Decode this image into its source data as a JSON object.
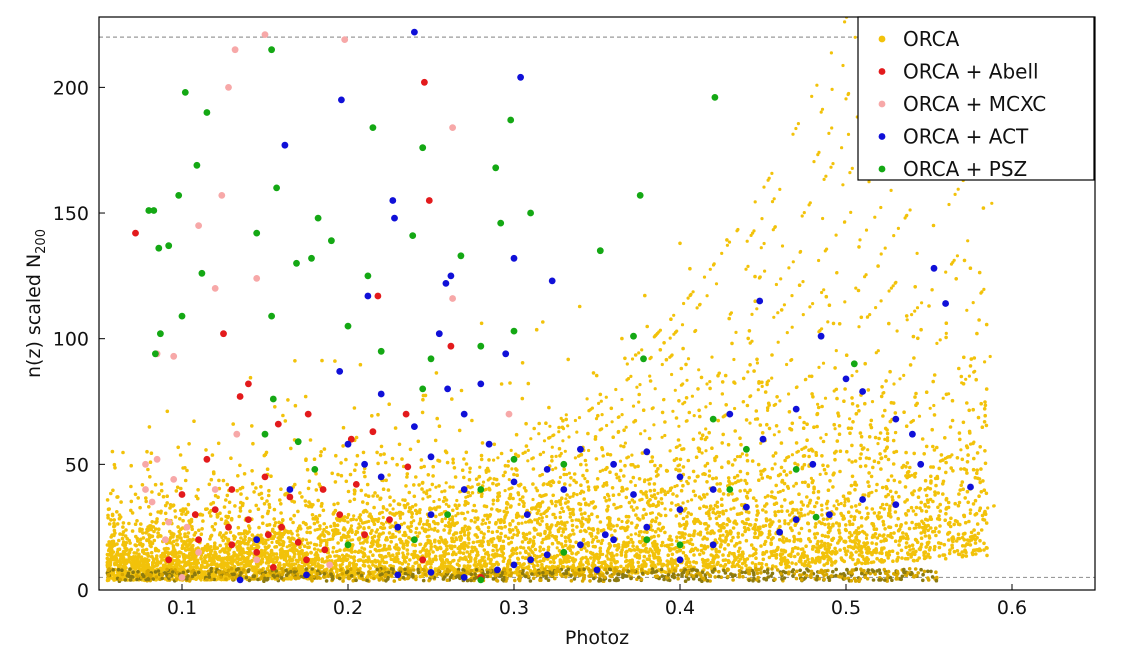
{
  "chart_data": {
    "type": "scatter",
    "xlabel": "Photoz",
    "ylabel": "n(z) scaled N",
    "ylabel_sub": "200",
    "xlim": [
      0.05,
      0.65
    ],
    "ylim": [
      0,
      228
    ],
    "xticks": [
      "0.1",
      "0.2",
      "0.3",
      "0.4",
      "0.5",
      "0.6"
    ],
    "yticks": [
      "0",
      "50",
      "100",
      "150",
      "200"
    ],
    "grid": false,
    "legend_position": "top-right",
    "reference_lines": [
      220,
      5
    ],
    "series": [
      {
        "name": "ORCA",
        "color": "#f2c20a"
      },
      {
        "name": "ORCA + Abell",
        "color": "#e31a1c"
      },
      {
        "name": "ORCA + MCXC",
        "color": "#f7a8a8"
      },
      {
        "name": "ORCA + ACT",
        "color": "#1010d8"
      },
      {
        "name": "ORCA + PSZ",
        "color": "#14a814"
      }
    ],
    "highlighted_points": {
      "ORCA + Abell": [
        [
          0.072,
          142
        ],
        [
          0.246,
          202
        ],
        [
          0.249,
          155
        ],
        [
          0.218,
          117
        ],
        [
          0.125,
          102
        ],
        [
          0.135,
          77
        ],
        [
          0.14,
          82
        ],
        [
          0.176,
          70
        ],
        [
          0.235,
          70
        ],
        [
          0.215,
          63
        ],
        [
          0.202,
          60
        ],
        [
          0.115,
          52
        ],
        [
          0.13,
          40
        ],
        [
          0.15,
          45
        ],
        [
          0.165,
          37
        ],
        [
          0.185,
          40
        ],
        [
          0.1,
          38
        ],
        [
          0.12,
          32
        ],
        [
          0.14,
          28
        ],
        [
          0.16,
          25
        ],
        [
          0.11,
          20
        ],
        [
          0.13,
          18
        ],
        [
          0.145,
          15
        ],
        [
          0.175,
          12
        ],
        [
          0.155,
          9
        ],
        [
          0.21,
          22
        ],
        [
          0.225,
          28
        ],
        [
          0.195,
          30
        ],
        [
          0.092,
          12
        ],
        [
          0.128,
          25
        ],
        [
          0.17,
          19
        ],
        [
          0.262,
          97
        ],
        [
          0.236,
          49
        ],
        [
          0.108,
          30
        ],
        [
          0.152,
          22
        ],
        [
          0.186,
          16
        ],
        [
          0.205,
          42
        ],
        [
          0.28,
          5
        ],
        [
          0.245,
          12
        ],
        [
          0.158,
          66
        ]
      ],
      "ORCA + MCXC": [
        [
          0.128,
          200
        ],
        [
          0.132,
          215
        ],
        [
          0.15,
          221
        ],
        [
          0.198,
          219
        ],
        [
          0.263,
          184
        ],
        [
          0.124,
          157
        ],
        [
          0.11,
          145
        ],
        [
          0.12,
          120
        ],
        [
          0.145,
          124
        ],
        [
          0.095,
          93
        ],
        [
          0.085,
          94
        ],
        [
          0.078,
          50
        ],
        [
          0.082,
          35
        ],
        [
          0.095,
          44
        ],
        [
          0.103,
          25
        ],
        [
          0.09,
          20
        ],
        [
          0.12,
          40
        ],
        [
          0.085,
          52
        ],
        [
          0.1,
          5
        ],
        [
          0.145,
          12
        ],
        [
          0.11,
          15
        ],
        [
          0.078,
          40
        ],
        [
          0.133,
          62
        ],
        [
          0.263,
          116
        ],
        [
          0.297,
          70
        ],
        [
          0.189,
          10
        ],
        [
          0.092,
          27
        ]
      ],
      "ORCA + ACT": [
        [
          0.24,
          222
        ],
        [
          0.304,
          204
        ],
        [
          0.196,
          195
        ],
        [
          0.162,
          177
        ],
        [
          0.227,
          155
        ],
        [
          0.228,
          148
        ],
        [
          0.262,
          125
        ],
        [
          0.259,
          122
        ],
        [
          0.3,
          132
        ],
        [
          0.323,
          123
        ],
        [
          0.212,
          117
        ],
        [
          0.255,
          102
        ],
        [
          0.295,
          94
        ],
        [
          0.448,
          115
        ],
        [
          0.553,
          128
        ],
        [
          0.56,
          114
        ],
        [
          0.43,
          70
        ],
        [
          0.47,
          72
        ],
        [
          0.485,
          101
        ],
        [
          0.5,
          84
        ],
        [
          0.51,
          79
        ],
        [
          0.45,
          60
        ],
        [
          0.48,
          50
        ],
        [
          0.53,
          68
        ],
        [
          0.54,
          62
        ],
        [
          0.545,
          50
        ],
        [
          0.575,
          41
        ],
        [
          0.53,
          34
        ],
        [
          0.51,
          36
        ],
        [
          0.49,
          30
        ],
        [
          0.47,
          28
        ],
        [
          0.44,
          33
        ],
        [
          0.42,
          40
        ],
        [
          0.4,
          45
        ],
        [
          0.4,
          32
        ],
        [
          0.38,
          25
        ],
        [
          0.36,
          20
        ],
        [
          0.34,
          18
        ],
        [
          0.32,
          14
        ],
        [
          0.31,
          12
        ],
        [
          0.3,
          10
        ],
        [
          0.29,
          8
        ],
        [
          0.33,
          40
        ],
        [
          0.36,
          50
        ],
        [
          0.38,
          55
        ],
        [
          0.34,
          56
        ],
        [
          0.32,
          48
        ],
        [
          0.3,
          43
        ],
        [
          0.27,
          40
        ],
        [
          0.25,
          30
        ],
        [
          0.23,
          25
        ],
        [
          0.22,
          45
        ],
        [
          0.21,
          50
        ],
        [
          0.2,
          58
        ],
        [
          0.22,
          78
        ],
        [
          0.24,
          65
        ],
        [
          0.26,
          80
        ],
        [
          0.27,
          70
        ],
        [
          0.28,
          82
        ],
        [
          0.25,
          7
        ],
        [
          0.27,
          5
        ],
        [
          0.23,
          6
        ],
        [
          0.35,
          8
        ],
        [
          0.4,
          12
        ],
        [
          0.42,
          18
        ],
        [
          0.46,
          23
        ],
        [
          0.25,
          53
        ],
        [
          0.195,
          87
        ],
        [
          0.165,
          40
        ],
        [
          0.145,
          20
        ],
        [
          0.175,
          6
        ],
        [
          0.135,
          4
        ],
        [
          0.285,
          58
        ],
        [
          0.308,
          30
        ],
        [
          0.355,
          22
        ],
        [
          0.372,
          38
        ]
      ],
      "ORCA + PSZ": [
        [
          0.102,
          198
        ],
        [
          0.154,
          215
        ],
        [
          0.115,
          190
        ],
        [
          0.215,
          184
        ],
        [
          0.245,
          176
        ],
        [
          0.109,
          169
        ],
        [
          0.298,
          187
        ],
        [
          0.421,
          196
        ],
        [
          0.376,
          157
        ],
        [
          0.157,
          160
        ],
        [
          0.08,
          151
        ],
        [
          0.083,
          151
        ],
        [
          0.098,
          157
        ],
        [
          0.145,
          142
        ],
        [
          0.19,
          139
        ],
        [
          0.182,
          148
        ],
        [
          0.212,
          125
        ],
        [
          0.239,
          141
        ],
        [
          0.268,
          133
        ],
        [
          0.086,
          136
        ],
        [
          0.092,
          137
        ],
        [
          0.112,
          126
        ],
        [
          0.084,
          94
        ],
        [
          0.087,
          102
        ],
        [
          0.1,
          109
        ],
        [
          0.154,
          109
        ],
        [
          0.169,
          130
        ],
        [
          0.178,
          132
        ],
        [
          0.31,
          150
        ],
        [
          0.352,
          135
        ],
        [
          0.289,
          168
        ],
        [
          0.292,
          146
        ],
        [
          0.2,
          105
        ],
        [
          0.22,
          95
        ],
        [
          0.25,
          92
        ],
        [
          0.28,
          97
        ],
        [
          0.3,
          103
        ],
        [
          0.372,
          101
        ],
        [
          0.378,
          92
        ],
        [
          0.505,
          90
        ],
        [
          0.42,
          68
        ],
        [
          0.44,
          56
        ],
        [
          0.3,
          52
        ],
        [
          0.28,
          40
        ],
        [
          0.26,
          30
        ],
        [
          0.24,
          20
        ],
        [
          0.2,
          18
        ],
        [
          0.15,
          62
        ],
        [
          0.17,
          59
        ],
        [
          0.18,
          48
        ],
        [
          0.43,
          40
        ],
        [
          0.38,
          20
        ],
        [
          0.33,
          15
        ],
        [
          0.28,
          4
        ],
        [
          0.245,
          80
        ],
        [
          0.33,
          50
        ],
        [
          0.47,
          48
        ],
        [
          0.482,
          29
        ],
        [
          0.4,
          18
        ],
        [
          0.155,
          76
        ]
      ]
    }
  }
}
